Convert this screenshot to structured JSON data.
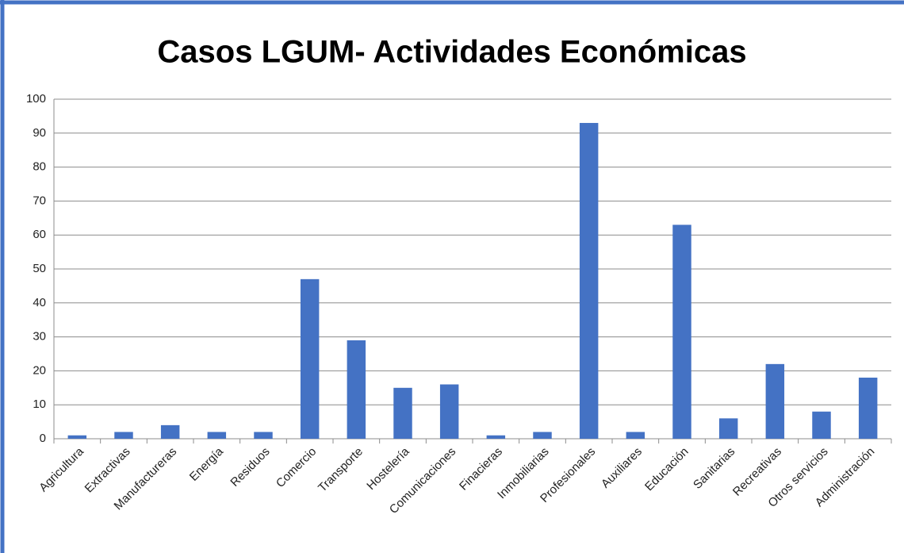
{
  "chart_data": {
    "type": "bar",
    "title": "Casos LGUM- Actividades Económicas",
    "categories": [
      "Agricultura",
      "Extractivas",
      "Manufactureras",
      "Energía",
      "Residuos",
      "Comercio",
      "Transporte",
      "Hostelería",
      "Comunicaciones",
      "Finacieras",
      "Inmobiliarias",
      "Profesionales",
      "Auxiliares",
      "Educación",
      "Sanitarias",
      "Recreativas",
      "Otros servicios",
      "Administración"
    ],
    "values": [
      1,
      2,
      4,
      2,
      2,
      47,
      29,
      15,
      16,
      1,
      2,
      93,
      2,
      63,
      6,
      22,
      8,
      18
    ],
    "color": "#4472c4",
    "ylim": [
      0,
      100
    ],
    "yticks": [
      0,
      10,
      20,
      30,
      40,
      50,
      60,
      70,
      80,
      90,
      100
    ],
    "grid": true
  }
}
